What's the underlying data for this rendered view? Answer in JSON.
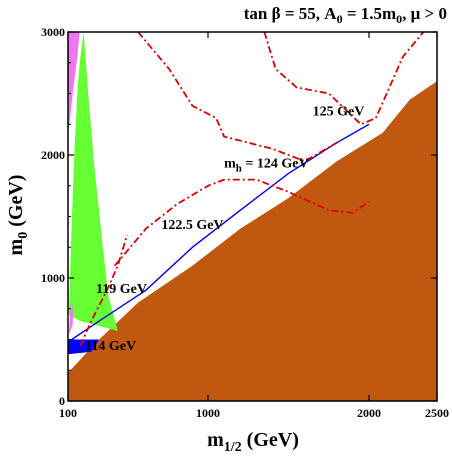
{
  "chart_data": {
    "type": "contour",
    "title": "tan β = 55, A₀ = 1.5m₀, μ > 0",
    "xlabel": "m₁/₂ (GeV)",
    "ylabel": "m₀ (GeV)",
    "xlim": [
      100,
      2500
    ],
    "ylim": [
      0,
      3000
    ],
    "x_ticks": [
      100,
      1000,
      2000,
      2500
    ],
    "y_ticks": [
      0,
      1000,
      2000,
      3000
    ],
    "grid": false,
    "regions": [
      {
        "name": "excluded-brown",
        "color": "#c0590f",
        "points": [
          [
            100,
            230
          ],
          [
            300,
            500
          ],
          [
            550,
            800
          ],
          [
            900,
            1100
          ],
          [
            1200,
            1400
          ],
          [
            1500,
            1650
          ],
          [
            1800,
            1950
          ],
          [
            2100,
            2180
          ],
          [
            2300,
            2450
          ],
          [
            2500,
            2600
          ],
          [
            2500,
            0
          ],
          [
            100,
            0
          ]
        ]
      },
      {
        "name": "green-band",
        "color": "#66ff33",
        "points": [
          [
            105,
            700
          ],
          [
            120,
            1300
          ],
          [
            140,
            2000
          ],
          [
            165,
            2600
          ],
          [
            180,
            2800
          ],
          [
            200,
            3000
          ],
          [
            230,
            2500
          ],
          [
            270,
            1900
          ],
          [
            320,
            1300
          ],
          [
            360,
            850
          ],
          [
            420,
            570
          ],
          [
            180,
            650
          ]
        ]
      },
      {
        "name": "pink-top",
        "color": "#ee77ee",
        "points": [
          [
            100,
            3000
          ],
          [
            175,
            3000
          ],
          [
            160,
            2800
          ],
          [
            130,
            2500
          ],
          [
            105,
            2200
          ]
        ]
      },
      {
        "name": "pink-bottom",
        "color": "#ee77ee",
        "points": [
          [
            105,
            540
          ],
          [
            115,
            720
          ],
          [
            135,
            800
          ],
          [
            130,
            620
          ]
        ]
      },
      {
        "name": "blue-bottom",
        "color": "#0000ff",
        "points": [
          [
            100,
            380
          ],
          [
            250,
            400
          ],
          [
            300,
            500
          ],
          [
            100,
            500
          ]
        ]
      }
    ],
    "contours": [
      {
        "label": "114 GeV",
        "label_at": [
          210,
          415
        ],
        "color": "#0000ee",
        "style": "solid",
        "x": [
          100,
          300,
          600,
          900,
          1200,
          1500,
          1800,
          2000
        ],
        "y": [
          480,
          650,
          900,
          1250,
          1550,
          1850,
          2100,
          2250
        ]
      },
      {
        "label": "119 GeV",
        "label_at": [
          280,
          880
        ],
        "color": "#dd0000",
        "style": "dashdot",
        "x": [
          180,
          250,
          350,
          420,
          480
        ],
        "y": [
          450,
          650,
          900,
          1100,
          1350
        ]
      },
      {
        "label": "122.5 GeV",
        "label_at": [
          700,
          1400
        ],
        "color": "#dd0000",
        "style": "dashdot",
        "x": [
          400,
          600,
          800,
          1000,
          1100,
          1300,
          1500,
          1750,
          1900,
          2000
        ],
        "y": [
          1100,
          1400,
          1600,
          1750,
          1800,
          1800,
          1700,
          1550,
          1530,
          1620
        ]
      },
      {
        "label": "124 GeV",
        "label_at": [
          1100,
          1900
        ],
        "color": "#dd0000",
        "style": "dashdot",
        "x": [
          550,
          750,
          900,
          1050,
          1100,
          1250,
          1400,
          1600,
          1800
        ],
        "y": [
          3000,
          2700,
          2400,
          2300,
          2150,
          2100,
          2050,
          1950,
          2100
        ]
      },
      {
        "label": "125 GeV",
        "label_at": [
          1650,
          2320
        ],
        "color": "#dd0000",
        "style": "dashdot",
        "x": [
          1350,
          1420,
          1550,
          1750,
          1950,
          2050,
          2150,
          2250,
          2400
        ],
        "y": [
          3000,
          2700,
          2550,
          2500,
          2250,
          2300,
          2550,
          2800,
          3000
        ]
      }
    ],
    "annotations": [
      {
        "text": "125 GeV",
        "label_at": [
          1650,
          2320
        ]
      },
      {
        "text": "m",
        "sub": "h",
        "tail": "= 124 GeV",
        "label_at": [
          1100,
          1900
        ]
      },
      {
        "text": "122.5 GeV",
        "label_at": [
          700,
          1400
        ]
      },
      {
        "text": "119 GeV",
        "label_at": [
          280,
          880
        ]
      },
      {
        "text": "114 GeV",
        "label_at": [
          210,
          415
        ]
      }
    ]
  }
}
